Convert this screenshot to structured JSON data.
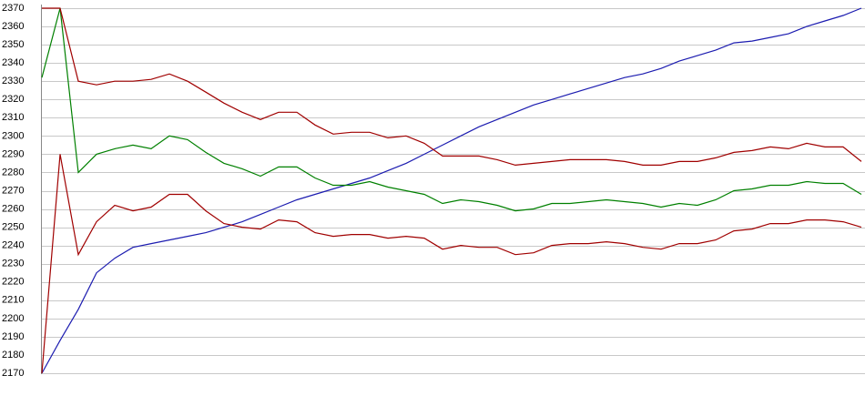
{
  "chart_data": {
    "type": "line",
    "ylim": [
      2170,
      2370
    ],
    "yticks": [
      2170,
      2180,
      2190,
      2200,
      2210,
      2220,
      2230,
      2240,
      2250,
      2260,
      2270,
      2280,
      2290,
      2300,
      2310,
      2320,
      2330,
      2340,
      2350,
      2360,
      2370
    ],
    "grid": true,
    "series": [
      {
        "color": "#1c1cb0",
        "values": [
          2170,
          2188,
          2205,
          2225,
          2233,
          2239,
          2241,
          2243,
          2245,
          2247,
          2250,
          2253,
          2257,
          2261,
          2265,
          2268,
          2271,
          2274,
          2277,
          2281,
          2285,
          2290,
          2295,
          2300,
          2305,
          2309,
          2313,
          2317,
          2320,
          2323,
          2326,
          2329,
          2332,
          2334,
          2337,
          2341,
          2344,
          2347,
          2351,
          2352,
          2354,
          2356,
          2360,
          2363,
          2366,
          2370
        ]
      },
      {
        "color": "#008000",
        "values": [
          2332,
          2370,
          2280,
          2290,
          2293,
          2295,
          2293,
          2300,
          2298,
          2291,
          2285,
          2282,
          2278,
          2283,
          2283,
          2277,
          2273,
          2273,
          2275,
          2272,
          2270,
          2268,
          2263,
          2265,
          2264,
          2262,
          2259,
          2260,
          2263,
          2263,
          2264,
          2265,
          2264,
          2263,
          2261,
          2263,
          2262,
          2265,
          2270,
          2271,
          2273,
          2273,
          2275,
          2274,
          2274,
          2268
        ]
      },
      {
        "color": "#a00000",
        "values": [
          2370,
          2370,
          2330,
          2328,
          2330,
          2330,
          2331,
          2334,
          2330,
          2324,
          2318,
          2313,
          2309,
          2313,
          2313,
          2306,
          2301,
          2302,
          2302,
          2299,
          2300,
          2296,
          2289,
          2289,
          2289,
          2287,
          2284,
          2285,
          2286,
          2287,
          2287,
          2287,
          2286,
          2284,
          2284,
          2286,
          2286,
          2288,
          2291,
          2292,
          2294,
          2293,
          2296,
          2294,
          2294,
          2286
        ]
      },
      {
        "color": "#a00000",
        "values": [
          2170,
          2290,
          2235,
          2253,
          2262,
          2259,
          2261,
          2268,
          2268,
          2259,
          2252,
          2250,
          2249,
          2254,
          2253,
          2247,
          2245,
          2246,
          2246,
          2244,
          2245,
          2244,
          2238,
          2240,
          2239,
          2239,
          2235,
          2236,
          2240,
          2241,
          2241,
          2242,
          2241,
          2239,
          2238,
          2241,
          2241,
          2243,
          2248,
          2249,
          2252,
          2252,
          2254,
          2254,
          2253,
          2250
        ]
      }
    ]
  }
}
